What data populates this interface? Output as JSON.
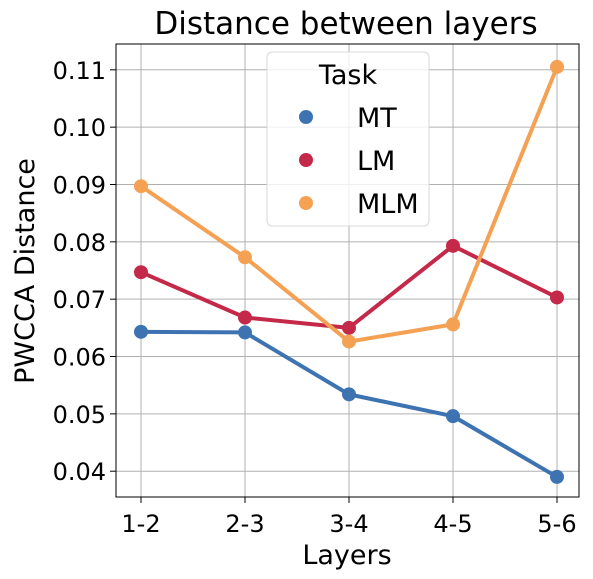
{
  "chart_data": {
    "type": "line",
    "title": "Distance between layers",
    "xlabel": "Layers",
    "ylabel": "PWCCA Distance",
    "categories": [
      "1-2",
      "2-3",
      "3-4",
      "4-5",
      "5-6"
    ],
    "ylim": [
      0.0355,
      0.1145
    ],
    "yticks": [
      0.04,
      0.05,
      0.06,
      0.07,
      0.08,
      0.09,
      0.1,
      0.11
    ],
    "ytick_labels": [
      "0.04",
      "0.05",
      "0.06",
      "0.07",
      "0.08",
      "0.09",
      "0.10",
      "0.11"
    ],
    "grid": true,
    "legend": {
      "title": "Task",
      "placement": "top-center"
    },
    "series": [
      {
        "name": "MT",
        "color": "#3e73b2",
        "values": [
          0.0643,
          0.0642,
          0.0534,
          0.0496,
          0.039
        ]
      },
      {
        "name": "LM",
        "color": "#c4294a",
        "values": [
          0.0747,
          0.0668,
          0.065,
          0.0793,
          0.0703
        ]
      },
      {
        "name": "MLM",
        "color": "#f5a154",
        "values": [
          0.0897,
          0.0773,
          0.0626,
          0.0656,
          0.1105
        ]
      }
    ]
  }
}
